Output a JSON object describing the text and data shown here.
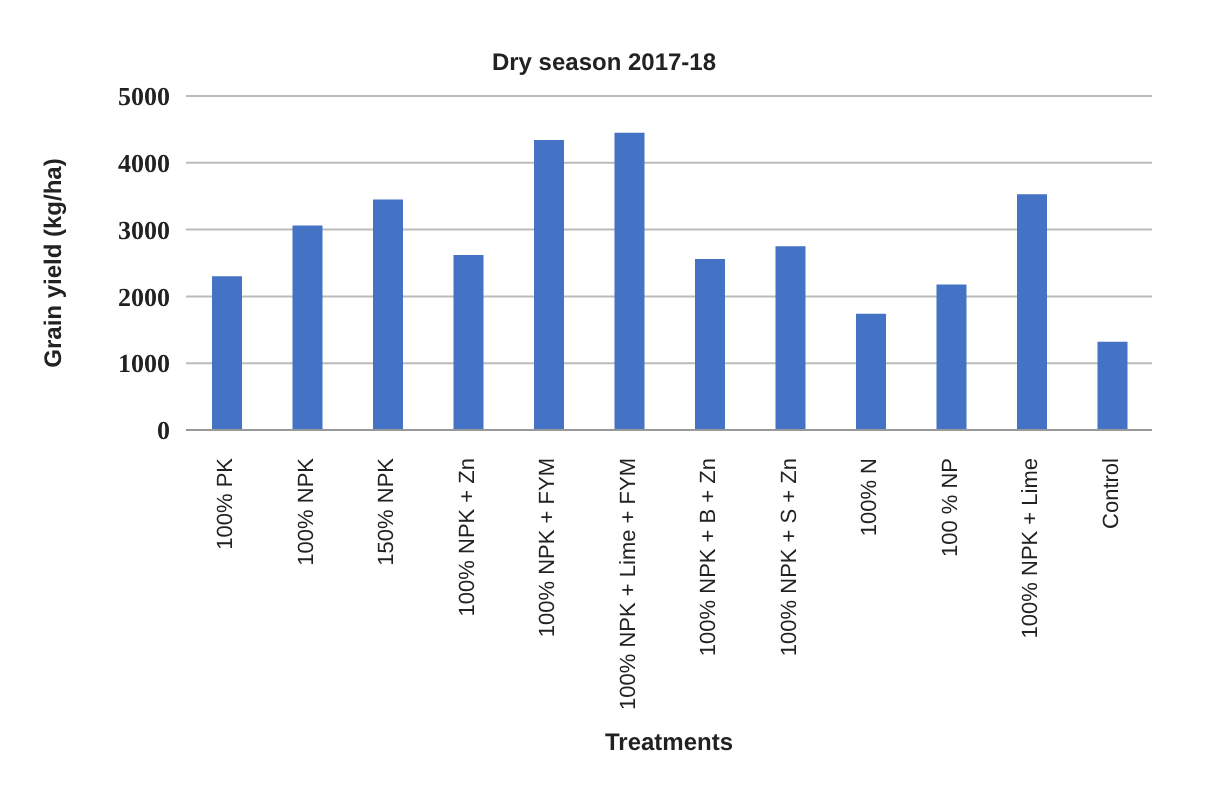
{
  "chart_data": {
    "type": "bar",
    "title": "Dry season 2017-18",
    "xlabel": "Treatments",
    "ylabel": "Grain yield (kg/ha)",
    "categories": [
      "100% PK",
      "100% NPK",
      "150% NPK",
      "100% NPK + Zn",
      "100% NPK + FYM",
      "100% NPK + Lime + FYM",
      "100% NPK + B + Zn",
      "100% NPK + S + Zn",
      "100% N",
      "100 % NP",
      "100% NPK + Lime",
      "Control"
    ],
    "values": [
      2300,
      3060,
      3450,
      2620,
      4340,
      4450,
      2560,
      2750,
      1740,
      2180,
      3530,
      1320
    ],
    "color": "#4472c4",
    "ylim": [
      0,
      5000
    ],
    "yticks": [
      0,
      1000,
      2000,
      3000,
      4000,
      5000
    ],
    "grid": "y"
  }
}
